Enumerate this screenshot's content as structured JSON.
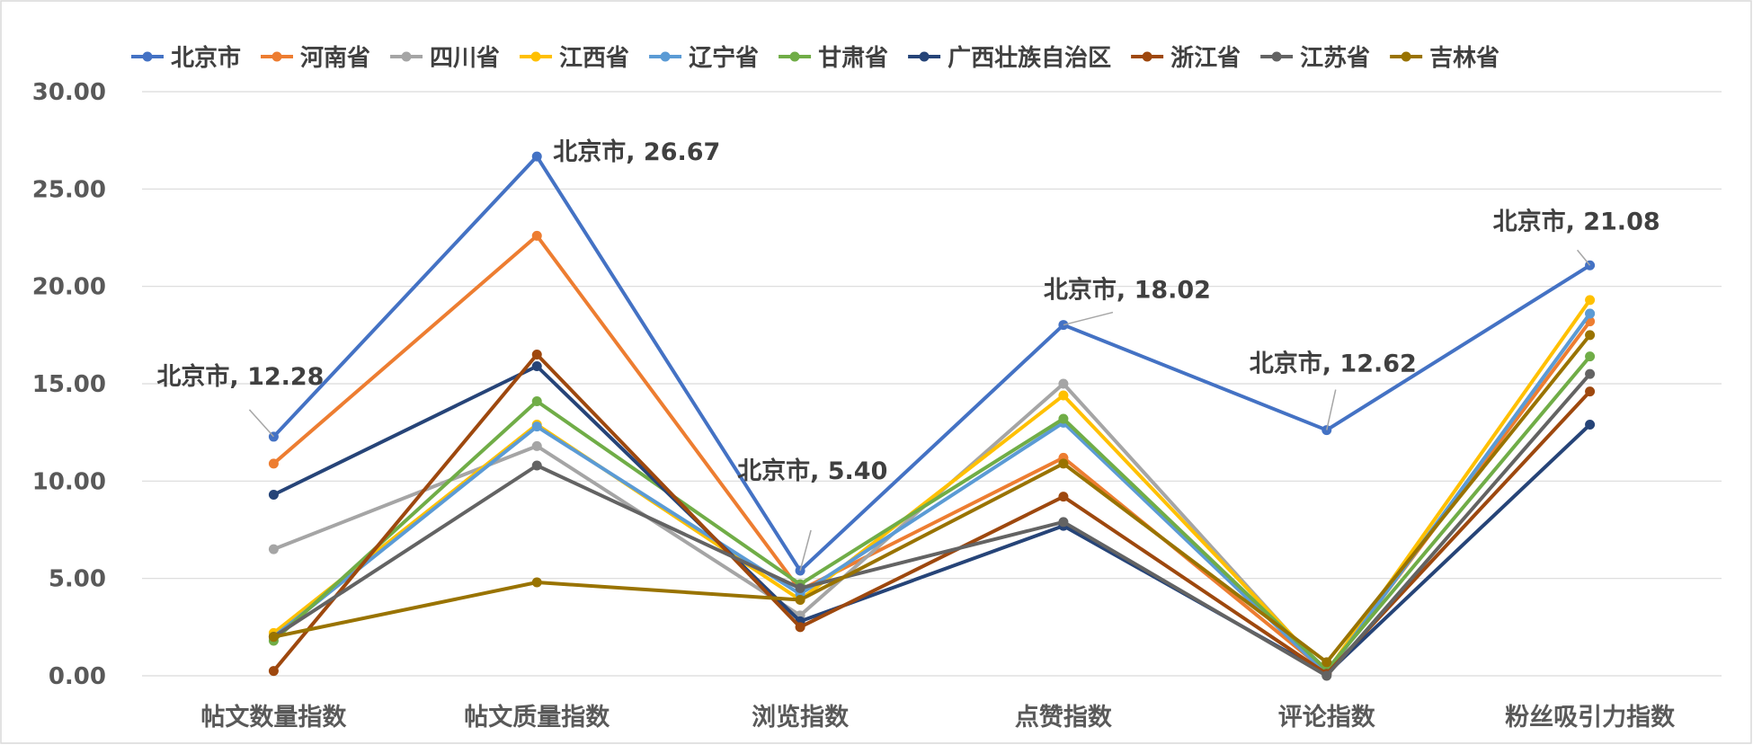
{
  "chart_data": {
    "type": "line",
    "title": "",
    "xlabel": "",
    "ylabel": "",
    "categories": [
      "帖文数量指数",
      "帖文质量指数",
      "浏览指数",
      "点赞指数",
      "评论指数",
      "粉丝吸引力指数"
    ],
    "ylim": [
      0,
      30
    ],
    "yticks": [
      "0.00",
      "5.00",
      "10.00",
      "15.00",
      "20.00",
      "25.00",
      "30.00"
    ],
    "grid": true,
    "legend_position": "top",
    "series": [
      {
        "name": "北京市",
        "color": "#4472C4",
        "values": [
          12.28,
          26.67,
          5.4,
          18.02,
          12.62,
          21.08
        ]
      },
      {
        "name": "河南省",
        "color": "#ED7D31",
        "values": [
          10.9,
          22.6,
          4.4,
          11.2,
          0.2,
          18.2
        ]
      },
      {
        "name": "四川省",
        "color": "#A5A5A5",
        "values": [
          6.5,
          11.8,
          3.1,
          15.0,
          0.1,
          18.6
        ]
      },
      {
        "name": "江西省",
        "color": "#FFC000",
        "values": [
          2.2,
          12.9,
          3.9,
          14.4,
          0.2,
          19.3
        ]
      },
      {
        "name": "辽宁省",
        "color": "#5B9BD5",
        "values": [
          2.0,
          12.8,
          4.2,
          13.0,
          0.1,
          18.6
        ]
      },
      {
        "name": "甘肃省",
        "color": "#70AD47",
        "values": [
          1.8,
          14.1,
          4.7,
          13.2,
          0.3,
          16.4
        ]
      },
      {
        "name": "广西壮族自治区",
        "color": "#264478",
        "values": [
          9.3,
          15.9,
          2.8,
          7.7,
          0.1,
          12.9
        ]
      },
      {
        "name": "浙江省",
        "color": "#9E480E",
        "values": [
          0.25,
          16.5,
          2.5,
          9.2,
          0.1,
          14.6
        ]
      },
      {
        "name": "江苏省",
        "color": "#636363",
        "values": [
          2.0,
          10.8,
          4.5,
          7.9,
          0.0,
          15.5
        ]
      },
      {
        "name": "吉林省",
        "color": "#997300",
        "values": [
          2.0,
          4.8,
          3.9,
          10.9,
          0.7,
          17.5
        ]
      }
    ],
    "annotations": [
      {
        "text": "北京市, 12.28"
      },
      {
        "text": "北京市, 26.67"
      },
      {
        "text": "北京市, 5.40"
      },
      {
        "text": "北京市, 18.02"
      },
      {
        "text": "北京市, 12.62"
      },
      {
        "text": "北京市, 21.08"
      }
    ]
  }
}
